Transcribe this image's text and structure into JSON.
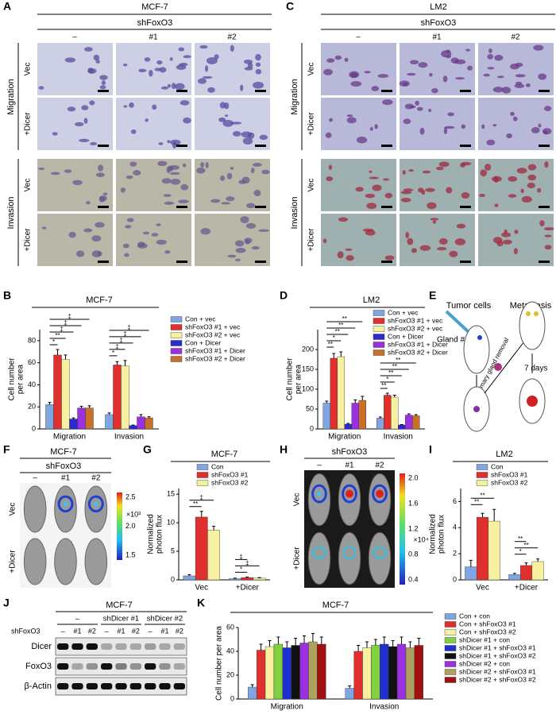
{
  "panel_labels": [
    "A",
    "B",
    "C",
    "D",
    "E",
    "F",
    "G",
    "H",
    "I",
    "J",
    "K"
  ],
  "microscopy": [
    {
      "title": "MCF-7",
      "treatment": "shFoxO3",
      "columns": [
        "–",
        "#1",
        "#2"
      ],
      "assays": [
        {
          "name": "Migration",
          "rows": [
            "Vec",
            "+Dicer"
          ]
        },
        {
          "name": "Invasion",
          "rows": [
            "Vec",
            "+Dicer"
          ]
        }
      ]
    },
    {
      "title": "LM2",
      "treatment": "shFoxO3",
      "columns": [
        "–",
        "#1",
        "#2"
      ],
      "assays": [
        {
          "name": "Migration",
          "rows": [
            "Vec",
            "+Dicer"
          ]
        },
        {
          "name": "Invasion",
          "rows": [
            "Vec",
            "+Dicer"
          ]
        }
      ]
    }
  ],
  "chart_data": [
    {
      "type": "bar",
      "title": "MCF-7",
      "ylabel": [
        "Cell number",
        "per area"
      ],
      "categories": [
        "Migration",
        "Invasion"
      ],
      "series": [
        {
          "name": "Con + vec",
          "color": "#7fa6e0",
          "values": [
            22,
            13
          ],
          "errors": [
            2,
            1.5
          ]
        },
        {
          "name": "shFoxO3 #1 + vec",
          "color": "#e0302e",
          "values": [
            67,
            58
          ],
          "errors": [
            5,
            3
          ]
        },
        {
          "name": "shFoxO3 #2 + vec",
          "color": "#f7f0a0",
          "values": [
            63,
            57
          ],
          "errors": [
            4,
            5
          ]
        },
        {
          "name": "Con + Dicer",
          "color": "#2a2ad0",
          "values": [
            9,
            3
          ],
          "errors": [
            1,
            0.5
          ]
        },
        {
          "name": "shFoxO3 #1 + Dicer",
          "color": "#9b30e0",
          "values": [
            19,
            11
          ],
          "errors": [
            1.5,
            2
          ]
        },
        {
          "name": "shFoxO3 #2 + Dicer",
          "color": "#c8702a",
          "values": [
            19,
            10
          ],
          "errors": [
            2,
            1
          ]
        }
      ],
      "ylim": [
        0,
        90
      ],
      "yticks": [
        0,
        20,
        40,
        60,
        80
      ],
      "annotations": [
        [
          "*",
          "**",
          "‡",
          "‡",
          "‡"
        ],
        [
          "*",
          "‡",
          "‡",
          "‡",
          "‡"
        ]
      ]
    },
    {
      "type": "bar",
      "title": "LM2",
      "ylabel": [
        "Cell number",
        "per area"
      ],
      "categories": [
        "Migration",
        "Invasion"
      ],
      "series": [
        {
          "name": "Con + vec",
          "color": "#7fa6e0",
          "values": [
            65,
            27
          ],
          "errors": [
            5,
            3
          ]
        },
        {
          "name": "shFoxO3 #1 + vec",
          "color": "#e0302e",
          "values": [
            178,
            85
          ],
          "errors": [
            12,
            5
          ]
        },
        {
          "name": "shFoxO3 #2 + vec",
          "color": "#f7f0a0",
          "values": [
            182,
            80
          ],
          "errors": [
            12,
            5
          ]
        },
        {
          "name": "Con + Dicer",
          "color": "#2a2ad0",
          "values": [
            12,
            10
          ],
          "errors": [
            2,
            1
          ]
        },
        {
          "name": "shFoxO3 #1 + Dicer",
          "color": "#9b30e0",
          "values": [
            65,
            35
          ],
          "errors": [
            8,
            3
          ]
        },
        {
          "name": "shFoxO3 #2 + Dicer",
          "color": "#c8702a",
          "values": [
            72,
            33
          ],
          "errors": [
            10,
            3
          ]
        }
      ],
      "ylim": [
        0,
        250
      ],
      "yticks": [
        0,
        50,
        100,
        150,
        200
      ],
      "annotations": [
        [
          "**",
          "*",
          "**",
          "**",
          "**"
        ],
        [
          "**",
          "*",
          "**",
          "**",
          "**"
        ]
      ]
    },
    {
      "type": "bar",
      "title": "MCF-7",
      "ylabel": [
        "Normalized",
        "photon flux"
      ],
      "categories": [
        "Vec",
        "+Dicer"
      ],
      "series": [
        {
          "name": "Con",
          "color": "#7fa6e0",
          "values": [
            0.7,
            0.2
          ],
          "errors": [
            0.2,
            0.1
          ]
        },
        {
          "name": "shFoxO3 #1",
          "color": "#e0302e",
          "values": [
            11,
            0.4
          ],
          "errors": [
            1,
            0.1
          ]
        },
        {
          "name": "shFoxO3 #2",
          "color": "#f7f0a0",
          "values": [
            8.7,
            0.3
          ],
          "errors": [
            0.7,
            0.1
          ]
        }
      ],
      "ylim": [
        0,
        16
      ],
      "yticks": [
        0,
        5,
        10,
        15
      ],
      "annotations": [
        [
          "**",
          "‡"
        ],
        [
          "*",
          "‡",
          "‡"
        ]
      ]
    },
    {
      "type": "bar",
      "title": "LM2",
      "ylabel": [
        "Normalized",
        "photon flux"
      ],
      "categories": [
        "Vec",
        "+Dicer"
      ],
      "series": [
        {
          "name": "Con",
          "color": "#7fa6e0",
          "values": [
            1.0,
            0.4
          ],
          "errors": [
            0.5,
            0.1
          ]
        },
        {
          "name": "shFoxO3 #1",
          "color": "#e0302e",
          "values": [
            4.8,
            1.1
          ],
          "errors": [
            0.3,
            0.2
          ]
        },
        {
          "name": "shFoxO3 #2",
          "color": "#f7f0a0",
          "values": [
            4.5,
            1.4
          ],
          "errors": [
            0.9,
            0.2
          ]
        }
      ],
      "ylim": [
        0,
        7
      ],
      "yticks": [
        0,
        2,
        4,
        6
      ],
      "annotations": [
        [
          "**",
          "**"
        ],
        [
          "*",
          "**",
          "**"
        ]
      ]
    },
    {
      "type": "bar",
      "title": "MCF-7",
      "ylabel": [
        "Cell number per area"
      ],
      "categories": [
        "Migration",
        "Invasion"
      ],
      "series": [
        {
          "name": "Con + con",
          "color": "#7fa6e0",
          "values": [
            10,
            9
          ],
          "errors": [
            2,
            2
          ]
        },
        {
          "name": "Con + shFoxO3 #1",
          "color": "#e0302e",
          "values": [
            41,
            40
          ],
          "errors": [
            5,
            5
          ]
        },
        {
          "name": "Con + shFoxO3 #2",
          "color": "#f7f0a0",
          "values": [
            44,
            43
          ],
          "errors": [
            5,
            5
          ]
        },
        {
          "name": "shDicer #1 + con",
          "color": "#80d040",
          "values": [
            46,
            45
          ],
          "errors": [
            6,
            5
          ]
        },
        {
          "name": "shDicer #1 + shFoxO3 #1",
          "color": "#2030d0",
          "values": [
            43,
            46
          ],
          "errors": [
            5,
            6
          ]
        },
        {
          "name": "shDicer #1 + shFoxO3 #2",
          "color": "#111111",
          "values": [
            45,
            44
          ],
          "errors": [
            6,
            5
          ]
        },
        {
          "name": "shDicer #2 + con",
          "color": "#9b30e0",
          "values": [
            47,
            46
          ],
          "errors": [
            6,
            6
          ]
        },
        {
          "name": "shDicer #2 + shFoxO3 #1",
          "color": "#b0a060",
          "values": [
            48,
            43
          ],
          "errors": [
            7,
            5
          ]
        },
        {
          "name": "shDicer #2 + shFoxO3 #2",
          "color": "#a01010",
          "values": [
            46,
            45
          ],
          "errors": [
            6,
            6
          ]
        }
      ],
      "ylim": [
        0,
        60
      ],
      "yticks": [
        0,
        20,
        40,
        60
      ]
    }
  ],
  "diagram": {
    "tumor_cells": "Tumor cells",
    "metastasis": "Metastasis",
    "gland": "Gland #4",
    "surgery": "Mammary gland removal",
    "time": "7 days"
  },
  "imaging": [
    {
      "title": "MCF-7",
      "treatment": "shFoxO3",
      "columns": [
        "–",
        "#1",
        "#2"
      ],
      "rows": [
        "Vec",
        "+Dicer"
      ],
      "scale_ticks": [
        "2.5",
        "2.0",
        "1.5"
      ],
      "scale_unit": "×10³"
    },
    {
      "treatment": "shFoxO3",
      "columns": [
        "–",
        "#1",
        "#2"
      ],
      "rows": [
        "Vec",
        "+Dicer"
      ],
      "scale_ticks": [
        "2.0",
        "1.6",
        "1.2",
        "0.8",
        "0.4"
      ],
      "scale_unit": "×10⁴"
    }
  ],
  "blot": {
    "title": "MCF-7",
    "groups": [
      "–",
      "shDicer #1",
      "shDicer #2"
    ],
    "row_label": "shFoxO3",
    "lanes": [
      "–",
      "#1",
      "#2",
      "–",
      "#1",
      "#2",
      "–",
      "#1",
      "#2"
    ],
    "proteins": [
      "Dicer",
      "FoxO3",
      "β-Actin"
    ]
  }
}
